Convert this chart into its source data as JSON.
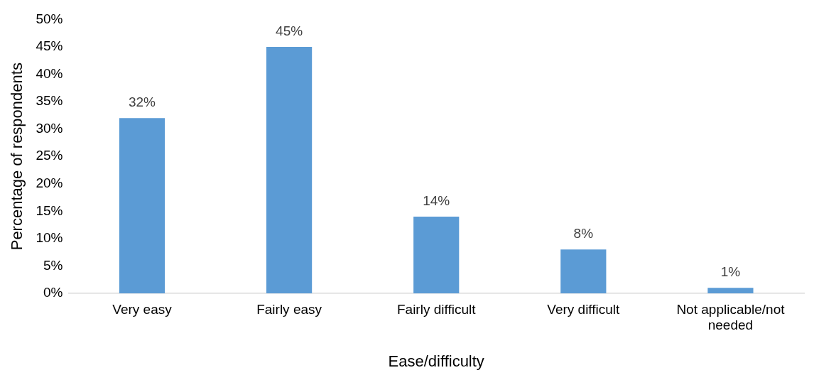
{
  "chart_data": {
    "type": "bar",
    "xlabel": "Ease/difficulty",
    "ylabel": "Percentage of respondents",
    "categories": [
      "Very easy",
      "Fairly easy",
      "Fairly difficult",
      "Very difficult",
      "Not applicable/not needed"
    ],
    "values": [
      32,
      45,
      14,
      8,
      1
    ],
    "color": "#5b9bd5",
    "value_labels": [
      "32%",
      "45%",
      "14%",
      "8%",
      "1%"
    ],
    "ylim": [
      0,
      50
    ],
    "yticks": [
      {
        "value": 0,
        "label": "0%"
      },
      {
        "value": 5,
        "label": "5%"
      },
      {
        "value": 10,
        "label": "10%"
      },
      {
        "value": 15,
        "label": "15%"
      },
      {
        "value": 20,
        "label": "20%"
      },
      {
        "value": 25,
        "label": "25%"
      },
      {
        "value": 30,
        "label": "30%"
      },
      {
        "value": 35,
        "label": "35%"
      },
      {
        "value": 40,
        "label": "40%"
      },
      {
        "value": 45,
        "label": "45%"
      },
      {
        "value": 50,
        "label": "50%"
      }
    ],
    "grid": false,
    "legend": false
  }
}
